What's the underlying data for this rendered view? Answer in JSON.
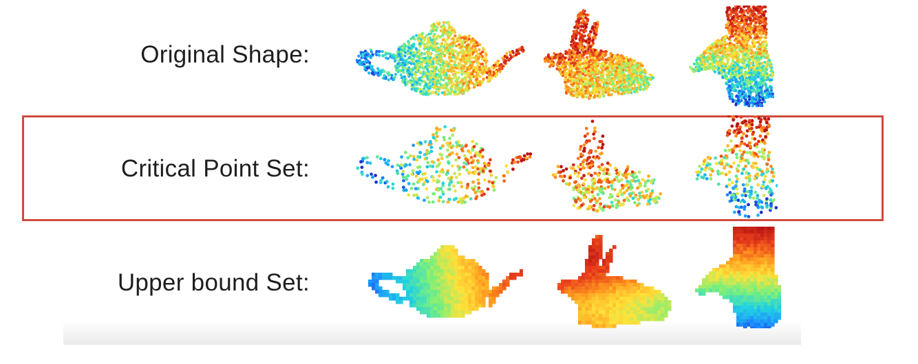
{
  "rows": [
    {
      "label": "Original Shape:",
      "style": "dense-points"
    },
    {
      "label": "Critical Point Set:",
      "style": "sparse-points",
      "highlighted": true
    },
    {
      "label": "Upper bound Set:",
      "style": "solid-fill"
    }
  ],
  "shapes": [
    "teapot",
    "bunny",
    "hand"
  ],
  "colors": {
    "highlight_border": "#d04a3c",
    "colormap": [
      "#1a2fd0",
      "#1e90ff",
      "#22d3e0",
      "#7cf07a",
      "#ffe23a",
      "#ff9a1f",
      "#e8401c",
      "#b81414"
    ]
  }
}
